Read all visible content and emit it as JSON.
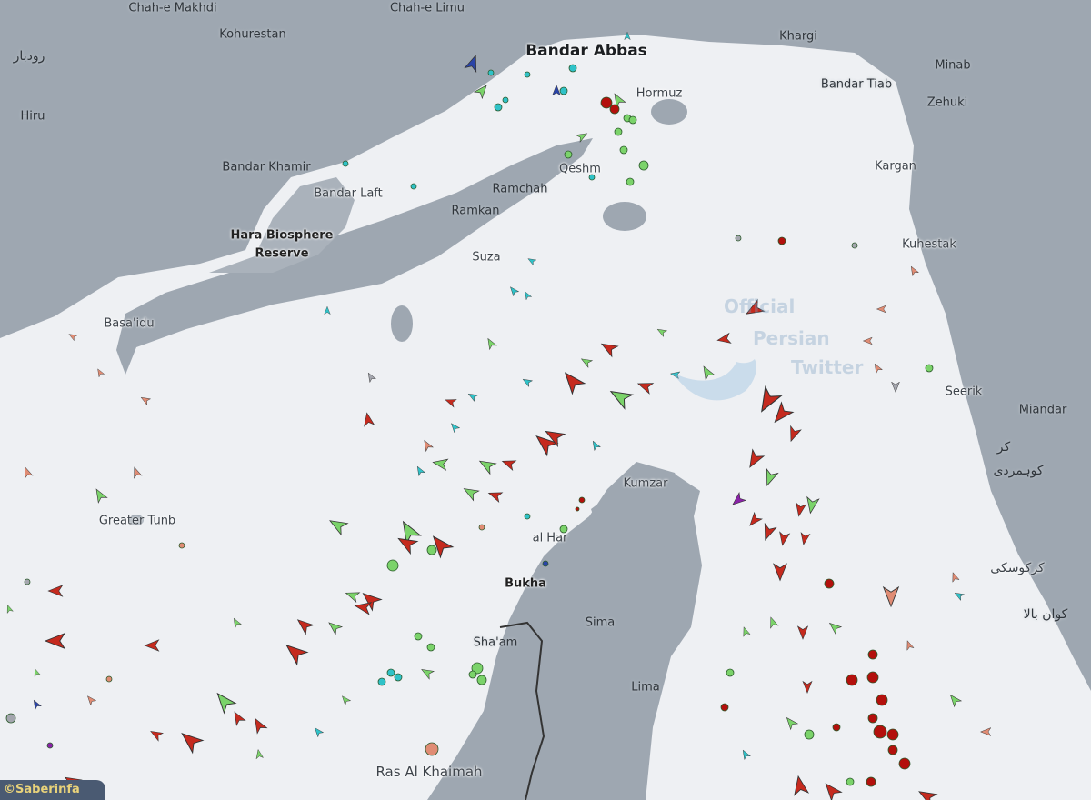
{
  "map": {
    "colors": {
      "land": "#9ea7b1",
      "sea": "#eef0f3",
      "red": "#c52a1e",
      "green": "#7bd36a",
      "cyan": "#2fc2c8",
      "salmon": "#e08c74",
      "gray": "#a4a6ae",
      "darkred": "#b3100c",
      "blue": "#2a44a8",
      "purple": "#8a22a8"
    },
    "labels": {
      "chah_makhdi": "Chah-e Makhdi",
      "chah_limu": "Chah-e Limu",
      "kohurestan": "Kohurestan",
      "rudbar": "رودبار",
      "hiru": "Hiru",
      "bandar_abbas": "Bandar Abbas",
      "khargi": "Khargi",
      "minab": "Minab",
      "bandar_tiab": "Bandar Tiab",
      "zehuki": "Zehuki",
      "hormuz": "Hormuz",
      "bandar_khamir": "Bandar Khamir",
      "bandar_laft": "Bandar Laft",
      "qeshm": "Qeshm",
      "ramchah": "Ramchah",
      "ramkan": "Ramkan",
      "kargan": "Kargan",
      "hara": "Hara Biosphere",
      "reserve": "Reserve",
      "suza": "Suza",
      "kuhestak": "Kuhestak",
      "basaidu": "Basa'idu",
      "seerik": "Seerik",
      "miandar": "Miandar",
      "kar": "کر",
      "kuhmardi": "کوہمردی",
      "kumzar": "Kumzar",
      "greater_tunb": "Greater Tunb",
      "al_har": "al Har",
      "bukha": "Bukha",
      "sima": "Sima",
      "karkusaki": "کرکوسکی",
      "kuwan_bala": "کوان بالا",
      "shaam": "Sha'am",
      "lima": "Lima",
      "ras_al_khaimah": "Ras Al Khaimah"
    },
    "watermark": {
      "line1": "Official",
      "line2": "Persian",
      "line3": "Twitter"
    },
    "credit": "©Saberinfa"
  }
}
